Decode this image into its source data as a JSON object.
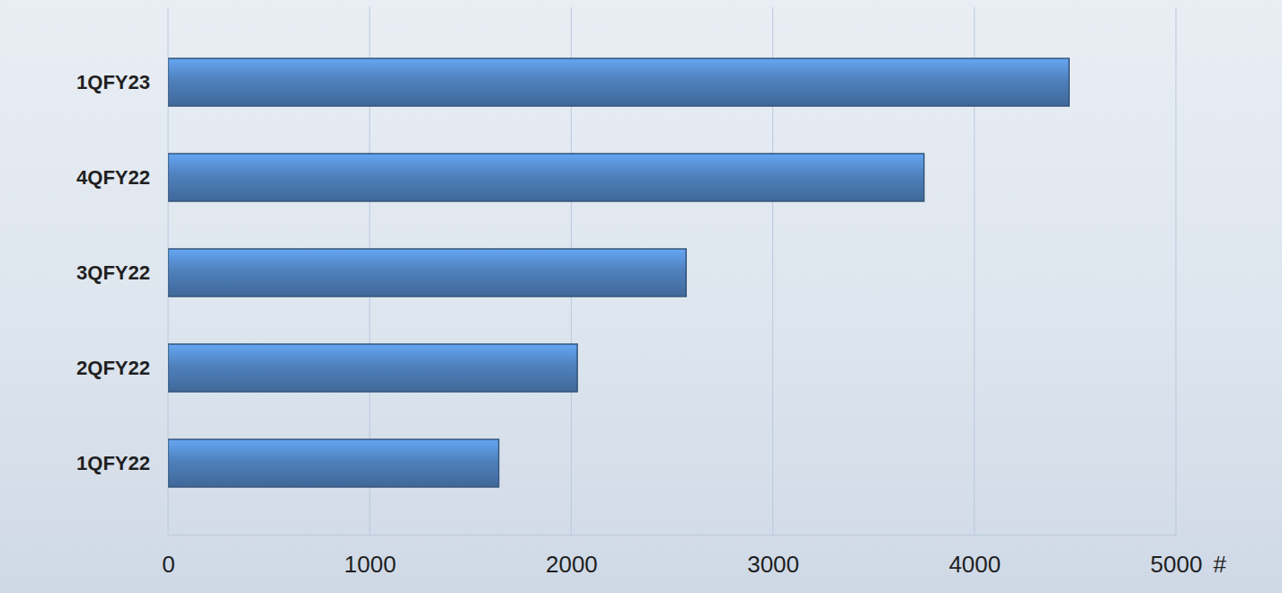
{
  "chart_data": {
    "type": "bar",
    "orientation": "horizontal",
    "categories": [
      "1QFY22",
      "2QFY22",
      "3QFY22",
      "4QFY22",
      "1QFY23"
    ],
    "values": [
      1640,
      2030,
      2570,
      3750,
      4470
    ],
    "color": "#4f81bd",
    "xlim": [
      0,
      5000
    ],
    "xticks": [
      0,
      1000,
      2000,
      3000,
      4000,
      5000
    ],
    "x_label": "#",
    "grid": true
  }
}
